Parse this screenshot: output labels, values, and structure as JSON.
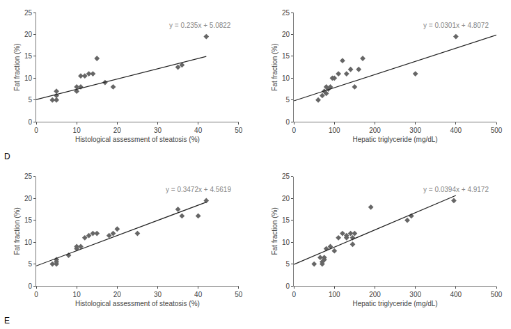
{
  "chart_data": [
    {
      "type": "scatter",
      "xlabel": "Histological assessment of steatosis (%)",
      "ylabel": "Fat fraction (%)",
      "xlim": [
        0,
        50
      ],
      "ylim": [
        0,
        25
      ],
      "xticks": [
        0,
        10,
        20,
        30,
        40,
        50
      ],
      "yticks": [
        0,
        5,
        10,
        15,
        20,
        25
      ],
      "grid": false,
      "annotations": [
        {
          "text": "y = 0.235x + 5.0822",
          "color": "#888888"
        },
        {
          "text": "D",
          "color": "black"
        }
      ],
      "series": [
        {
          "type": "scatter",
          "marker": "diamond",
          "color": "#666666",
          "x": [
            4,
            5,
            5,
            5,
            10,
            10,
            11,
            11,
            12,
            13,
            14,
            15,
            17,
            19,
            35,
            36,
            42
          ],
          "values": [
            5,
            5,
            6,
            7,
            7,
            8,
            8,
            10.5,
            10.5,
            11,
            11,
            14.5,
            9,
            8,
            12.5,
            13,
            19.5
          ]
        },
        {
          "type": "line",
          "line_style": "solid",
          "color": "#222222",
          "x": [
            0,
            42
          ],
          "values": [
            5.0822,
            14.9522
          ]
        }
      ]
    },
    {
      "type": "scatter",
      "xlabel": "Hepatic triglyceride (mg/dL)",
      "ylabel": "Fat fraction (%)",
      "xlim": [
        0,
        500
      ],
      "ylim": [
        0,
        25
      ],
      "xticks": [
        0,
        100,
        200,
        300,
        400,
        500
      ],
      "yticks": [
        0,
        5,
        10,
        15,
        20,
        25
      ],
      "grid": false,
      "annotations": [
        {
          "text": "y = 0.0301x + 4.8072",
          "color": "#888888"
        }
      ],
      "series": [
        {
          "type": "scatter",
          "marker": "diamond",
          "color": "#666666",
          "x": [
            60,
            70,
            75,
            80,
            80,
            85,
            90,
            95,
            100,
            110,
            120,
            130,
            140,
            150,
            160,
            170,
            300,
            400
          ],
          "values": [
            5,
            6,
            7,
            8,
            6.5,
            7.5,
            8,
            10,
            10,
            11,
            14,
            11,
            12,
            8,
            12,
            14.5,
            11,
            19.5
          ]
        },
        {
          "type": "line",
          "line_style": "solid",
          "color": "#222222",
          "x": [
            0,
            500
          ],
          "values": [
            4.8072,
            19.8572
          ]
        }
      ]
    },
    {
      "type": "scatter",
      "xlabel": "Histological assessment of steatosis (%)",
      "ylabel": "Fat fraction (%)",
      "xlim": [
        0,
        50
      ],
      "ylim": [
        0,
        25
      ],
      "xticks": [
        0,
        10,
        20,
        30,
        40,
        50
      ],
      "yticks": [
        0,
        5,
        10,
        15,
        20,
        25
      ],
      "grid": false,
      "annotations": [
        {
          "text": "y = 0.3472x + 4.5619",
          "color": "#888888"
        },
        {
          "text": "E",
          "color": "black"
        }
      ],
      "series": [
        {
          "type": "scatter",
          "marker": "diamond",
          "color": "#666666",
          "x": [
            4,
            5,
            5,
            5,
            8,
            10,
            10,
            11,
            12,
            13,
            14,
            15,
            18,
            19,
            20,
            25,
            35,
            36,
            40,
            42
          ],
          "values": [
            5,
            5,
            5.5,
            6,
            7,
            8.5,
            9,
            9,
            11,
            11.5,
            12,
            12,
            11.5,
            12,
            13,
            12,
            17.5,
            16,
            16,
            19.5
          ]
        },
        {
          "type": "line",
          "line_style": "solid",
          "color": "#222222",
          "x": [
            0,
            42
          ],
          "values": [
            4.5619,
            19.1443
          ]
        }
      ]
    },
    {
      "type": "scatter",
      "xlabel": "Hepatic triglyceride (mg/dL)",
      "ylabel": "Fat fraction (%)",
      "xlim": [
        0,
        500
      ],
      "ylim": [
        0,
        25
      ],
      "xticks": [
        0,
        100,
        200,
        300,
        400,
        500
      ],
      "yticks": [
        0,
        5,
        10,
        15,
        20,
        25
      ],
      "grid": false,
      "annotations": [
        {
          "text": "y = 0.0394x + 4.9172",
          "color": "#888888"
        }
      ],
      "series": [
        {
          "type": "scatter",
          "marker": "diamond",
          "color": "#666666",
          "x": [
            50,
            65,
            70,
            70,
            75,
            75,
            80,
            90,
            100,
            110,
            120,
            130,
            130,
            140,
            145,
            145,
            150,
            190,
            280,
            290,
            395
          ],
          "values": [
            5,
            6.5,
            5,
            5.5,
            6,
            6.5,
            8.5,
            9,
            8,
            11,
            12,
            11,
            11.5,
            12,
            9.5,
            11,
            12,
            18,
            15,
            16,
            19.5
          ]
        },
        {
          "type": "line",
          "line_style": "solid",
          "color": "#222222",
          "x": [
            0,
            400
          ],
          "values": [
            4.9172,
            20.6772
          ]
        }
      ]
    }
  ]
}
